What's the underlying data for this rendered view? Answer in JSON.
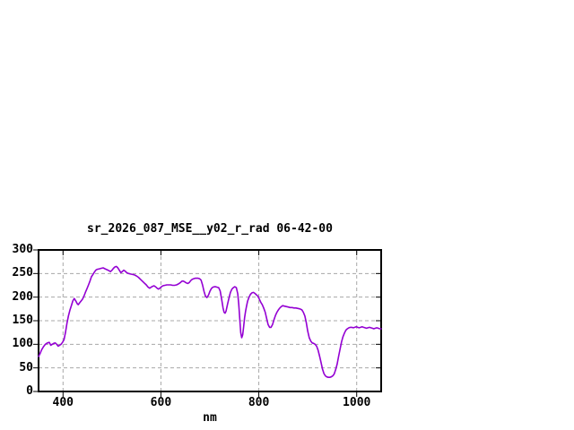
{
  "window": {
    "background": "#ffffff"
  },
  "chart_data": {
    "type": "line",
    "title": "sr_2026_087_MSE__y02_r_rad 06-42-00",
    "xlabel": "nm",
    "ylabel": "",
    "xlim": [
      350,
      1050
    ],
    "ylim": [
      0,
      300
    ],
    "x_ticks": [
      400,
      600,
      800,
      1000
    ],
    "y_ticks": [
      0,
      50,
      100,
      150,
      200,
      250,
      300
    ],
    "grid": true,
    "legend": "none",
    "colors": {
      "line": "#9400d3",
      "grid": "#a8a8a8",
      "border": "#000000",
      "text": "#000000"
    },
    "series": [
      {
        "color": "#9400d3",
        "points": [
          [
            350,
            74
          ],
          [
            353,
            80
          ],
          [
            356,
            88
          ],
          [
            360,
            95
          ],
          [
            364,
            100
          ],
          [
            368,
            103
          ],
          [
            372,
            104
          ],
          [
            375,
            98
          ],
          [
            378,
            100
          ],
          [
            381,
            102
          ],
          [
            384,
            103
          ],
          [
            387,
            100
          ],
          [
            390,
            96
          ],
          [
            393,
            98
          ],
          [
            396,
            100
          ],
          [
            399,
            104
          ],
          [
            402,
            110
          ],
          [
            405,
            125
          ],
          [
            408,
            145
          ],
          [
            411,
            160
          ],
          [
            414,
            172
          ],
          [
            417,
            182
          ],
          [
            420,
            192
          ],
          [
            423,
            197
          ],
          [
            426,
            192
          ],
          [
            429,
            186
          ],
          [
            431,
            184
          ],
          [
            434,
            188
          ],
          [
            437,
            192
          ],
          [
            440,
            196
          ],
          [
            443,
            203
          ],
          [
            446,
            211
          ],
          [
            449,
            218
          ],
          [
            452,
            226
          ],
          [
            455,
            234
          ],
          [
            458,
            243
          ],
          [
            461,
            248
          ],
          [
            464,
            253
          ],
          [
            467,
            257
          ],
          [
            470,
            259
          ],
          [
            474,
            260
          ],
          [
            478,
            261
          ],
          [
            482,
            262
          ],
          [
            486,
            260
          ],
          [
            490,
            258
          ],
          [
            494,
            256
          ],
          [
            497,
            254
          ],
          [
            500,
            257
          ],
          [
            503,
            261
          ],
          [
            506,
            264
          ],
          [
            509,
            265
          ],
          [
            512,
            262
          ],
          [
            515,
            257
          ],
          [
            518,
            252
          ],
          [
            521,
            254
          ],
          [
            524,
            257
          ],
          [
            527,
            255
          ],
          [
            530,
            252
          ],
          [
            534,
            250
          ],
          [
            538,
            249
          ],
          [
            542,
            248
          ],
          [
            546,
            247
          ],
          [
            550,
            245
          ],
          [
            554,
            242
          ],
          [
            558,
            238
          ],
          [
            562,
            234
          ],
          [
            566,
            230
          ],
          [
            570,
            226
          ],
          [
            574,
            221
          ],
          [
            577,
            219
          ],
          [
            580,
            221
          ],
          [
            583,
            223
          ],
          [
            586,
            224
          ],
          [
            589,
            222
          ],
          [
            592,
            219
          ],
          [
            595,
            217
          ],
          [
            598,
            219
          ],
          [
            601,
            222
          ],
          [
            604,
            224
          ],
          [
            608,
            225
          ],
          [
            612,
            226
          ],
          [
            616,
            226
          ],
          [
            620,
            226
          ],
          [
            624,
            225
          ],
          [
            628,
            225
          ],
          [
            632,
            226
          ],
          [
            636,
            228
          ],
          [
            640,
            231
          ],
          [
            643,
            234
          ],
          [
            646,
            234
          ],
          [
            649,
            232
          ],
          [
            652,
            230
          ],
          [
            655,
            229
          ],
          [
            658,
            231
          ],
          [
            661,
            235
          ],
          [
            664,
            238
          ],
          [
            667,
            239
          ],
          [
            670,
            240
          ],
          [
            673,
            240
          ],
          [
            676,
            240
          ],
          [
            679,
            239
          ],
          [
            682,
            236
          ],
          [
            685,
            226
          ],
          [
            688,
            212
          ],
          [
            691,
            202
          ],
          [
            694,
            199
          ],
          [
            697,
            204
          ],
          [
            700,
            212
          ],
          [
            703,
            218
          ],
          [
            706,
            221
          ],
          [
            709,
            222
          ],
          [
            712,
            222
          ],
          [
            715,
            221
          ],
          [
            718,
            220
          ],
          [
            721,
            213
          ],
          [
            724,
            196
          ],
          [
            727,
            177
          ],
          [
            729,
            168
          ],
          [
            731,
            166
          ],
          [
            733,
            170
          ],
          [
            736,
            184
          ],
          [
            739,
            198
          ],
          [
            742,
            210
          ],
          [
            745,
            217
          ],
          [
            748,
            220
          ],
          [
            751,
            222
          ],
          [
            754,
            220
          ],
          [
            757,
            207
          ],
          [
            759,
            185
          ],
          [
            761,
            155
          ],
          [
            763,
            125
          ],
          [
            765,
            114
          ],
          [
            767,
            120
          ],
          [
            769,
            138
          ],
          [
            771,
            156
          ],
          [
            773,
            170
          ],
          [
            775,
            181
          ],
          [
            777,
            191
          ],
          [
            780,
            200
          ],
          [
            783,
            206
          ],
          [
            786,
            209
          ],
          [
            789,
            210
          ],
          [
            792,
            208
          ],
          [
            795,
            205
          ],
          [
            798,
            202
          ],
          [
            801,
            196
          ],
          [
            804,
            189
          ],
          [
            807,
            184
          ],
          [
            810,
            177
          ],
          [
            813,
            168
          ],
          [
            816,
            155
          ],
          [
            819,
            142
          ],
          [
            822,
            136
          ],
          [
            825,
            136
          ],
          [
            828,
            142
          ],
          [
            831,
            152
          ],
          [
            834,
            161
          ],
          [
            837,
            168
          ],
          [
            840,
            173
          ],
          [
            843,
            177
          ],
          [
            846,
            180
          ],
          [
            849,
            182
          ],
          [
            852,
            181
          ],
          [
            856,
            180
          ],
          [
            860,
            179
          ],
          [
            864,
            178
          ],
          [
            868,
            178
          ],
          [
            872,
            177
          ],
          [
            876,
            177
          ],
          [
            880,
            176
          ],
          [
            884,
            175
          ],
          [
            888,
            173
          ],
          [
            891,
            168
          ],
          [
            894,
            160
          ],
          [
            897,
            146
          ],
          [
            900,
            128
          ],
          [
            903,
            114
          ],
          [
            906,
            107
          ],
          [
            909,
            103
          ],
          [
            912,
            102
          ],
          [
            915,
            100
          ],
          [
            918,
            96
          ],
          [
            921,
            88
          ],
          [
            924,
            76
          ],
          [
            927,
            62
          ],
          [
            930,
            48
          ],
          [
            933,
            38
          ],
          [
            936,
            33
          ],
          [
            939,
            31
          ],
          [
            942,
            30
          ],
          [
            945,
            30
          ],
          [
            948,
            31
          ],
          [
            951,
            33
          ],
          [
            954,
            37
          ],
          [
            957,
            46
          ],
          [
            960,
            58
          ],
          [
            963,
            74
          ],
          [
            966,
            90
          ],
          [
            969,
            105
          ],
          [
            972,
            116
          ],
          [
            975,
            124
          ],
          [
            978,
            130
          ],
          [
            981,
            133
          ],
          [
            984,
            135
          ],
          [
            987,
            136
          ],
          [
            990,
            136
          ],
          [
            993,
            135
          ],
          [
            996,
            136
          ],
          [
            999,
            137
          ],
          [
            1002,
            136
          ],
          [
            1005,
            135
          ],
          [
            1008,
            136
          ],
          [
            1011,
            137
          ],
          [
            1014,
            136
          ],
          [
            1017,
            135
          ],
          [
            1020,
            134
          ],
          [
            1023,
            135
          ],
          [
            1026,
            136
          ],
          [
            1029,
            135
          ],
          [
            1032,
            134
          ],
          [
            1035,
            133
          ],
          [
            1038,
            134
          ],
          [
            1041,
            135
          ],
          [
            1044,
            134
          ],
          [
            1047,
            133
          ],
          [
            1050,
            133
          ]
        ]
      }
    ]
  }
}
